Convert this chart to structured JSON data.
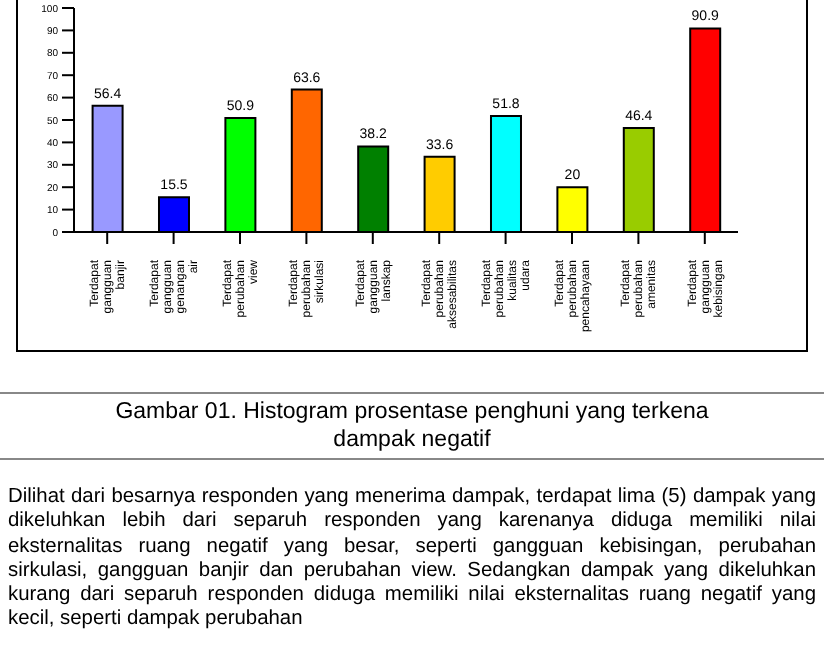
{
  "chart_data": {
    "type": "bar",
    "categories": [
      "Terdapat gangguan banjir",
      "Terdapat gangguan genangan air",
      "Terdapat perubahan view",
      "Terdapat perubahan sirkulasi",
      "Terdapat gangguan lanskap",
      "Terdapat perubahan aksesabilitas",
      "Terdapat perubahan kualitas udara",
      "Terdapat perubahan pencahayaan",
      "Terdapat perubahan amenitas",
      "Terdapat gangguan kebisingan"
    ],
    "values": [
      56.4,
      15.5,
      50.9,
      63.6,
      38.2,
      33.6,
      51.8,
      20,
      46.4,
      90.9
    ],
    "colors": [
      "#9999ff",
      "#0000ff",
      "#00ff00",
      "#ff6600",
      "#008000",
      "#ffcc00",
      "#00ffff",
      "#ffff00",
      "#99cc00",
      "#ff0000"
    ],
    "ylim": [
      0,
      100
    ],
    "yticks": [
      0,
      10,
      20,
      30,
      40,
      50,
      60,
      70,
      80,
      90,
      100
    ],
    "data_labels": true,
    "grid": false,
    "legend": false,
    "annotations": [
      "Gambar  01. Histogram prosentase penghuni yang terkena dampak negatif",
      "Dilihat dari besarnya responden yang menerima dampak, terdapat lima (5) dampak yang dikeluhkan lebih dari separuh responden yang karenanya diduga memiliki nilai eksternalitas ruang negatif yang besar, seperti gangguan kebisingan, perubahan sirkulasi, gangguan banjir dan perubahan view. Sedangkan dampak yang dikeluhkan kurang dari separuh responden diduga memiliki nilai eksternalitas ruang negatif yang kecil, seperti dampak perubahan"
    ]
  }
}
